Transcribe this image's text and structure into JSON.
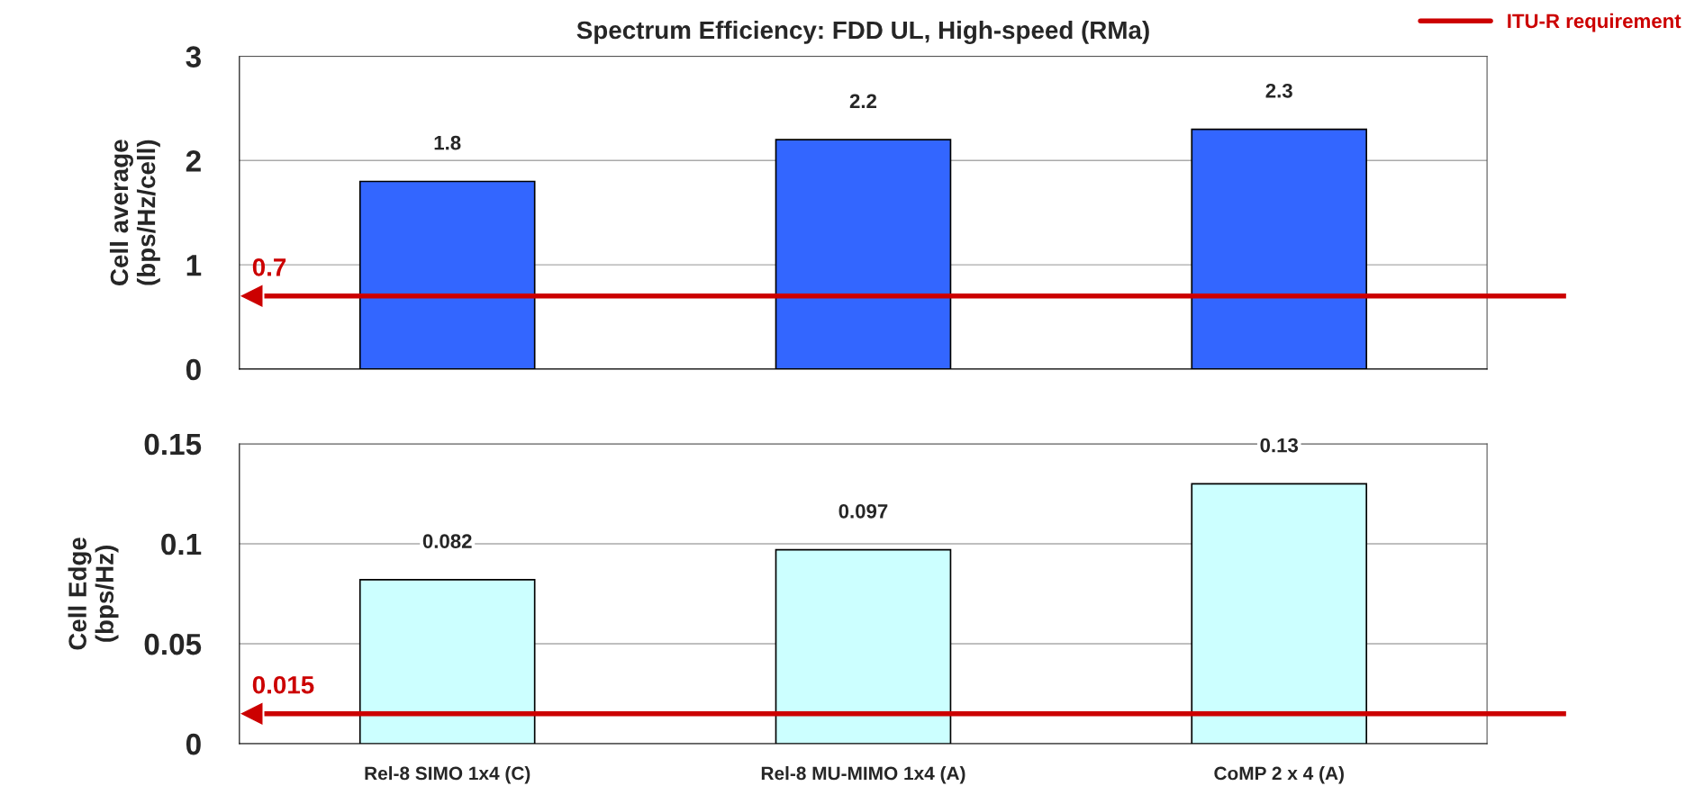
{
  "chart_data": [
    {
      "type": "bar",
      "title": "Spectrum Efficiency: FDD UL, High-speed (RMa)",
      "ylabel": "Cell average\n(bps/Hz/cell)",
      "values": [
        1.8,
        2.2,
        2.3
      ],
      "color": "#3366ff",
      "ylim": [
        0,
        3
      ],
      "yticks": [
        0,
        1,
        2,
        3
      ],
      "grid": "y",
      "data_labels": true,
      "tick_labels": "y",
      "ref_lines": [
        {
          "axis": "y",
          "value": 0.7,
          "label": "ITU-R requirement",
          "color": "#cc0000"
        }
      ],
      "annotations": [
        {
          "text": "0.7",
          "y": 0.7
        }
      ],
      "legend": "top right"
    },
    {
      "type": "bar",
      "ylabel": "Cell Edge\n(bps/Hz)",
      "categories": [
        "Rel-8 SIMO 1x4 (C)",
        "Rel-8 MU-MIMO 1x4 (A)",
        "CoMP 2 x 4 (A)"
      ],
      "values": [
        0.082,
        0.097,
        0.13
      ],
      "color": "#ccffff",
      "ylim": [
        0,
        0.15
      ],
      "yticks": [
        0,
        0.05,
        0.1,
        0.15
      ],
      "grid": "y",
      "data_labels": true,
      "ref_lines": [
        {
          "axis": "y",
          "value": 0.015,
          "color": "#cc0000"
        }
      ],
      "annotations": [
        {
          "text": "0.015",
          "y": 0.015
        }
      ]
    }
  ]
}
